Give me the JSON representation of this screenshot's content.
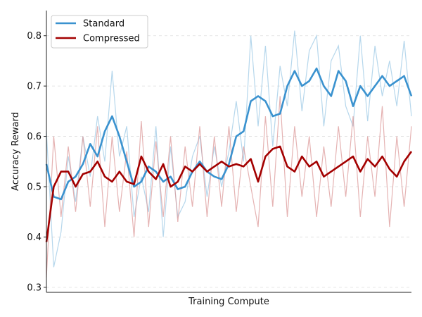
{
  "chart_data": {
    "type": "line",
    "title": "",
    "xlabel": "Training Compute",
    "ylabel": "Accuracy Reward",
    "ylim": [
      0.29,
      0.85
    ],
    "yticks": [
      0.3,
      0.4,
      0.5,
      0.6,
      0.7,
      0.8
    ],
    "ytick_labels": [
      "0.3",
      "0.4",
      "0.5",
      "0.6",
      "0.7",
      "0.8"
    ],
    "x_ticks_shown": false,
    "x_range": [
      0,
      100
    ],
    "grid": "horizontal dashed",
    "legend_location": "upper-left",
    "series": [
      {
        "name": "Standard",
        "color": "#3a92cf",
        "raw_color": "#9ecae6",
        "x": [
          0,
          2,
          4,
          6,
          8,
          10,
          12,
          14,
          16,
          18,
          20,
          22,
          24,
          26,
          28,
          30,
          32,
          34,
          36,
          38,
          40,
          42,
          44,
          46,
          48,
          50,
          52,
          54,
          56,
          58,
          60,
          62,
          64,
          66,
          68,
          70,
          72,
          74,
          76,
          78,
          80,
          82,
          84,
          86,
          88,
          90,
          92,
          94,
          96,
          98,
          100
        ],
        "values": [
          0.545,
          0.48,
          0.475,
          0.51,
          0.52,
          0.545,
          0.585,
          0.56,
          0.61,
          0.64,
          0.6,
          0.55,
          0.5,
          0.51,
          0.54,
          0.53,
          0.51,
          0.52,
          0.495,
          0.5,
          0.53,
          0.55,
          0.53,
          0.52,
          0.515,
          0.545,
          0.6,
          0.61,
          0.67,
          0.68,
          0.67,
          0.64,
          0.645,
          0.7,
          0.73,
          0.7,
          0.71,
          0.735,
          0.7,
          0.68,
          0.73,
          0.71,
          0.66,
          0.7,
          0.68,
          0.7,
          0.72,
          0.7,
          0.71,
          0.72,
          0.68
        ],
        "raw_values": [
          0.61,
          0.34,
          0.41,
          0.56,
          0.47,
          0.6,
          0.52,
          0.64,
          0.55,
          0.73,
          0.56,
          0.62,
          0.44,
          0.52,
          0.45,
          0.62,
          0.4,
          0.58,
          0.44,
          0.47,
          0.56,
          0.6,
          0.48,
          0.58,
          0.5,
          0.57,
          0.67,
          0.55,
          0.8,
          0.62,
          0.78,
          0.58,
          0.74,
          0.66,
          0.81,
          0.65,
          0.77,
          0.8,
          0.62,
          0.75,
          0.78,
          0.66,
          0.62,
          0.8,
          0.63,
          0.78,
          0.68,
          0.75,
          0.66,
          0.79,
          0.64
        ]
      },
      {
        "name": "Compressed",
        "color": "#a30000",
        "raw_color": "#dc9a9a",
        "x": [
          0,
          2,
          4,
          6,
          8,
          10,
          12,
          14,
          16,
          18,
          20,
          22,
          24,
          26,
          28,
          30,
          32,
          34,
          36,
          38,
          40,
          42,
          44,
          46,
          48,
          50,
          52,
          54,
          56,
          58,
          60,
          62,
          64,
          66,
          68,
          70,
          72,
          74,
          76,
          78,
          80,
          82,
          84,
          86,
          88,
          90,
          92,
          94,
          96,
          98,
          100
        ],
        "values": [
          0.39,
          0.5,
          0.53,
          0.53,
          0.5,
          0.525,
          0.53,
          0.55,
          0.52,
          0.51,
          0.53,
          0.51,
          0.505,
          0.56,
          0.53,
          0.515,
          0.545,
          0.5,
          0.51,
          0.54,
          0.53,
          0.545,
          0.53,
          0.54,
          0.55,
          0.54,
          0.545,
          0.54,
          0.555,
          0.51,
          0.56,
          0.575,
          0.58,
          0.54,
          0.53,
          0.56,
          0.54,
          0.55,
          0.52,
          0.53,
          0.54,
          0.55,
          0.56,
          0.53,
          0.555,
          0.54,
          0.56,
          0.535,
          0.52,
          0.55,
          0.57
        ],
        "raw_values": [
          0.32,
          0.6,
          0.44,
          0.58,
          0.45,
          0.6,
          0.46,
          0.62,
          0.42,
          0.6,
          0.45,
          0.57,
          0.4,
          0.63,
          0.42,
          0.59,
          0.44,
          0.6,
          0.43,
          0.58,
          0.46,
          0.62,
          0.44,
          0.6,
          0.46,
          0.62,
          0.45,
          0.58,
          0.5,
          0.42,
          0.64,
          0.46,
          0.68,
          0.44,
          0.62,
          0.48,
          0.6,
          0.44,
          0.58,
          0.46,
          0.62,
          0.48,
          0.64,
          0.44,
          0.6,
          0.48,
          0.66,
          0.42,
          0.6,
          0.46,
          0.62
        ]
      }
    ]
  }
}
